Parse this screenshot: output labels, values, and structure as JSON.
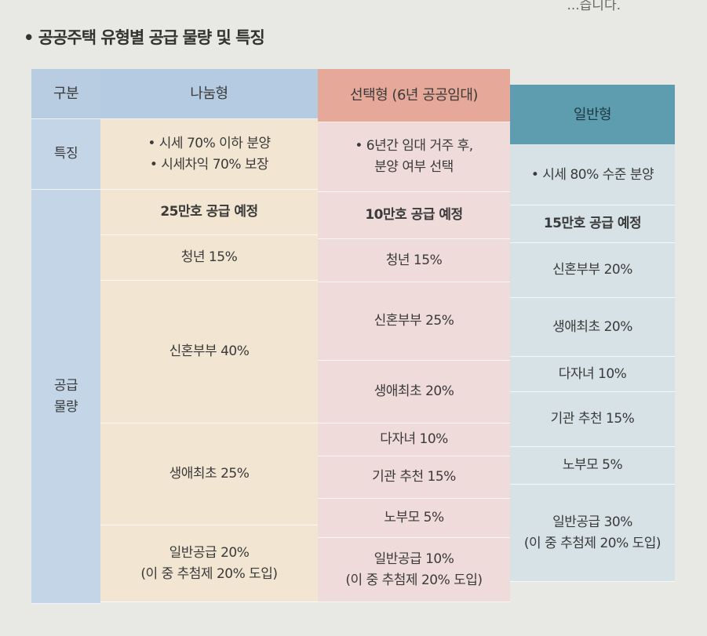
{
  "top_text": "...습니다.",
  "title": "• 공공주택 유형별 공급 물량 및 특징",
  "label_column": {
    "header": "구분",
    "features": "특징",
    "supply": "공급\n물량"
  },
  "columns": [
    {
      "header": "나눔형",
      "features": [
        "• 시세 70% 이하 분양",
        "• 시세차익 70% 보장"
      ],
      "total": "25만호 공급 예정",
      "supply": [
        "청년 15%",
        "신혼부부 40%",
        "생애최초 25%",
        "일반공급 20%\n(이 중 추첨제 20% 도입)"
      ]
    },
    {
      "header": "선택형 (6년 공공임대)",
      "features": [
        "• 6년간 임대 거주 후,",
        "분양 여부 선택"
      ],
      "total": "10만호 공급 예정",
      "supply": [
        "청년 15%",
        "신혼부부 25%",
        "생애최초 20%",
        "다자녀 10%",
        "기관 추천 15%",
        "노부모 5%",
        "일반공급 10%\n(이 중 추첨제 20% 도입)"
      ]
    },
    {
      "header": "일반형",
      "features": [
        "• 시세 80% 수준 분양"
      ],
      "total": "15만호 공급 예정",
      "supply": [
        "신혼부부 20%",
        "생애최초 20%",
        "다자녀 10%",
        "기관 추천 15%",
        "노부모 5%",
        "일반공급 30%\n(이 중 추첨제 20% 도입)"
      ]
    }
  ],
  "colors": {
    "label_bg": "#c3d5e6",
    "header_bg": [
      "#b5cbe2",
      "#e6a899",
      "#5e9daf"
    ],
    "body_bg": [
      "#f2e5d2",
      "#efdbda",
      "#d6e2e5"
    ]
  }
}
